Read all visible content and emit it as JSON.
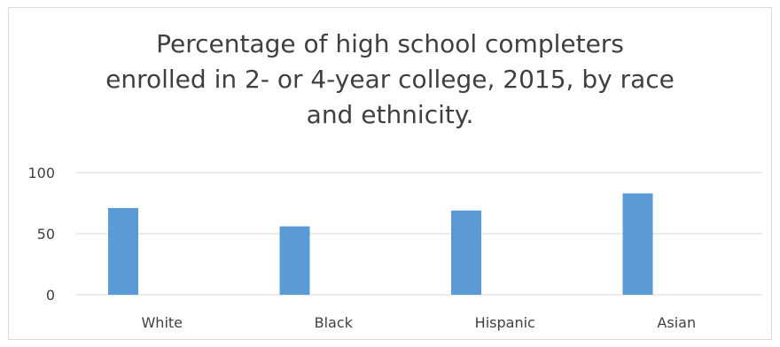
{
  "chart_data": {
    "type": "bar",
    "title": "Percentage of high school completers\nenrolled in 2- or 4-year college, 2015, by race\nand ethnicity.",
    "xlabel": "",
    "ylabel": "",
    "categories": [
      "White",
      "Black",
      "Hispanic",
      "Asian"
    ],
    "values": [
      71,
      56,
      69,
      83
    ],
    "ylim": [
      0,
      100
    ],
    "yticks": [
      "0",
      "50",
      "100"
    ],
    "grid": true,
    "legend": "none",
    "bar_color": "#5b9bd5",
    "grid_color": "#d9d9d9",
    "text_color": "#404040"
  }
}
